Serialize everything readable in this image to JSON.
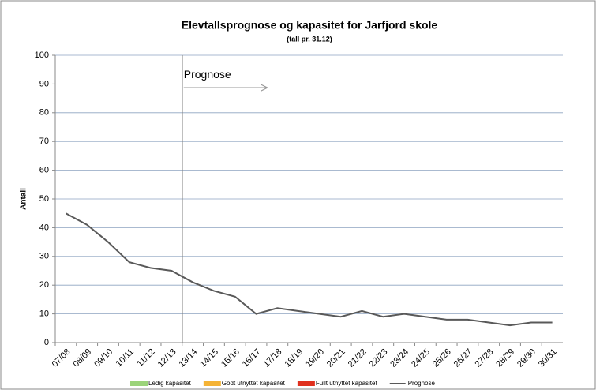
{
  "chart_data": {
    "type": "line",
    "title": "Elevtallsprognose og kapasitet for Jarfjord skole",
    "subtitle": "(tall pr. 31.12)",
    "y_label": "Antall",
    "categories": [
      "07/08",
      "08/09",
      "09/10",
      "10/11",
      "11/12",
      "12/13",
      "13/14",
      "14/15",
      "15/16",
      "16/17",
      "17/18",
      "18/19",
      "19/20",
      "20/21",
      "21/22",
      "22/23",
      "23/24",
      "24/25",
      "25/26",
      "26/27",
      "27/28",
      "28/29",
      "29/30",
      "30/31"
    ],
    "series": [
      {
        "name": "Prognose",
        "color": "#595959",
        "values": [
          45,
          41,
          35,
          28,
          26,
          25,
          21,
          18,
          16,
          10,
          12,
          11,
          10,
          9,
          11,
          9,
          10,
          9,
          8,
          8,
          7,
          6,
          7,
          7
        ]
      }
    ],
    "area_legend": [
      {
        "name": "Ledig kapasitet",
        "color": "#9bd37a"
      },
      {
        "name": "Godt utnyttet kapasitet",
        "color": "#f5b335"
      },
      {
        "name": "Fullt utnyttet kapasitet",
        "color": "#e0301e"
      }
    ],
    "annotation": {
      "text": "Prognose",
      "forecast_start": "13/14"
    },
    "ylim": [
      0,
      100
    ],
    "yticks": [
      0,
      10,
      20,
      30,
      40,
      50,
      60,
      70,
      80,
      90,
      100
    ],
    "grid": true
  }
}
